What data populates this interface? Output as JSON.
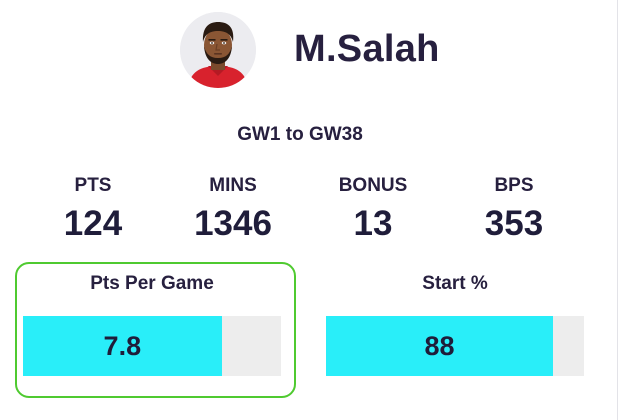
{
  "player": {
    "name": "M.Salah",
    "avatar_icon": "player-portrait-icon"
  },
  "period": {
    "label": "GW1 to GW38"
  },
  "stats": [
    {
      "label": "PTS",
      "value": "124"
    },
    {
      "label": "MINS",
      "value": "1346"
    },
    {
      "label": "BONUS",
      "value": "13"
    },
    {
      "label": "BPS",
      "value": "353"
    }
  ],
  "metrics": [
    {
      "label": "Pts Per Game",
      "value": "7.8",
      "fill_fraction": 0.77,
      "highlighted": true
    },
    {
      "label": "Start %",
      "value": "88",
      "fill_fraction": 0.88,
      "highlighted": false
    }
  ],
  "colors": {
    "bar_fill": "#29eef9",
    "bar_track": "#ededed",
    "highlight_border": "#4fca30",
    "text_dark": "#27203f"
  }
}
